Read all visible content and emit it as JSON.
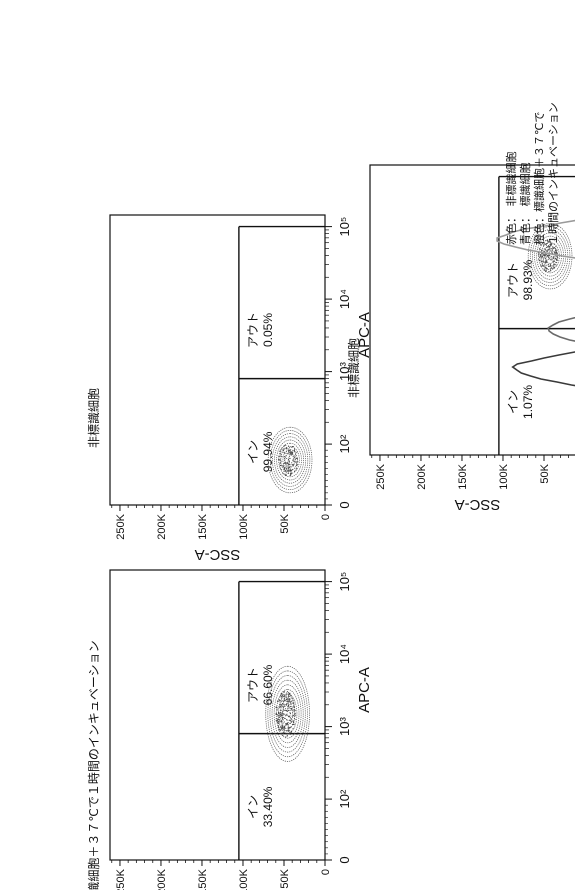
{
  "colors": {
    "ink": "#111111",
    "contour": "#555555",
    "trace_red": "#3a3a3a",
    "trace_blue": "#9a9a9a",
    "trace_orange": "#6a6a6a"
  },
  "chart_data": [
    {
      "id": "unlabeled",
      "type": "scatter",
      "title": "非標識細胞",
      "xlabel": "APC-A",
      "ylabel": "SSC-A",
      "x_scale": "biexponential",
      "x_ticks": [
        "0",
        "10²",
        "10³",
        "10⁴",
        "10⁵"
      ],
      "y_ticks": [
        "0",
        "50K",
        "100K",
        "150K",
        "200K",
        "250K"
      ],
      "ylim": [
        0,
        262144
      ],
      "gate_x": 800,
      "gate_y_max": 105000,
      "gates": [
        {
          "label": "イン",
          "percent": "99.94%"
        },
        {
          "label": "アウト",
          "percent": "0.05%"
        }
      ],
      "population": {
        "x_center": 30,
        "y_center": 45000
      }
    },
    {
      "id": "labeled",
      "type": "scatter",
      "title": "非標識細胞",
      "xlabel": "APC-A",
      "ylabel": "SSC-A",
      "x_scale": "biexponential",
      "x_ticks": [
        "0",
        "10²",
        "10³",
        "10⁴",
        "10⁵"
      ],
      "y_ticks": [
        "0",
        "50K",
        "100K",
        "150K",
        "200K",
        "250K"
      ],
      "ylim": [
        0,
        262144
      ],
      "gate_x": 800,
      "gate_y_max": 105000,
      "gates": [
        {
          "label": "イン",
          "percent": "1.07%"
        },
        {
          "label": "アウト",
          "percent": "98.93%"
        }
      ],
      "population": {
        "x_center": 8000,
        "y_center": 45000
      }
    },
    {
      "id": "incubated",
      "type": "scatter",
      "title": "標識細胞＋３７℃で１時間のインキュベーション",
      "xlabel": "APC-A",
      "ylabel": "SSC-A",
      "x_scale": "biexponential",
      "x_ticks": [
        "0",
        "10²",
        "10³",
        "10⁴",
        "10⁵"
      ],
      "y_ticks": [
        "0",
        "50K",
        "100K",
        "150K",
        "200K",
        "250K"
      ],
      "ylim": [
        0,
        262144
      ],
      "gate_x": 800,
      "gate_y_max": 105000,
      "gates": [
        {
          "label": "イン",
          "percent": "33.40%"
        },
        {
          "label": "アウト",
          "percent": "66.60%"
        }
      ],
      "population": {
        "x_center": 1500,
        "y_center": 48000
      }
    },
    {
      "id": "overlay",
      "type": "line",
      "xlabel": "APC-A",
      "x_scale": "biexponential",
      "x_ticks": [
        "0",
        "10²",
        "10³",
        "10⁴",
        "10⁵"
      ],
      "legend": [
        "赤色：　非標識細胞",
        "青色：　標識細胞",
        "橙色：標識細胞＋３７℃で",
        "１時間のインキュベーション"
      ],
      "series": [
        {
          "name": "赤色",
          "peak_x": 150,
          "peak_height": 0.95
        },
        {
          "name": "青色",
          "peak_x": 8000,
          "peak_height": 1.0
        },
        {
          "name": "橙色",
          "peak_x": 500,
          "peak_height": 0.75
        }
      ]
    }
  ]
}
